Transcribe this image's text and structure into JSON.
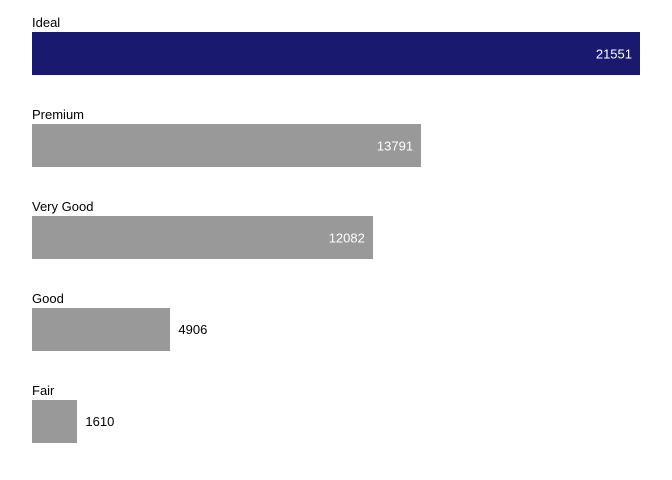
{
  "chart_data": {
    "type": "bar",
    "orientation": "horizontal",
    "title": "",
    "xlabel": "",
    "ylabel": "",
    "categories": [
      "Ideal",
      "Premium",
      "Very Good",
      "Good",
      "Fair"
    ],
    "values": [
      21551,
      13791,
      12082,
      4906,
      1610
    ],
    "value_labels": [
      "21551",
      "13791",
      "12082",
      "4906",
      "1610"
    ],
    "xlim": [
      0,
      21551
    ],
    "grid": false,
    "legend": false,
    "axes_visible": false,
    "bar_colors": [
      "#191970",
      "#999999",
      "#999999",
      "#999999",
      "#999999"
    ],
    "value_label_position": [
      "inside",
      "inside",
      "inside",
      "outside",
      "outside"
    ],
    "value_label_colors": [
      "#ffffff",
      "#ffffff",
      "#ffffff",
      "#000000",
      "#000000"
    ]
  },
  "colors": {
    "background": "#ffffff",
    "highlight_bar": "#191970",
    "default_bar": "#999999",
    "category_text": "#000000",
    "inside_value_text": "#ffffff",
    "outside_value_text": "#000000"
  }
}
